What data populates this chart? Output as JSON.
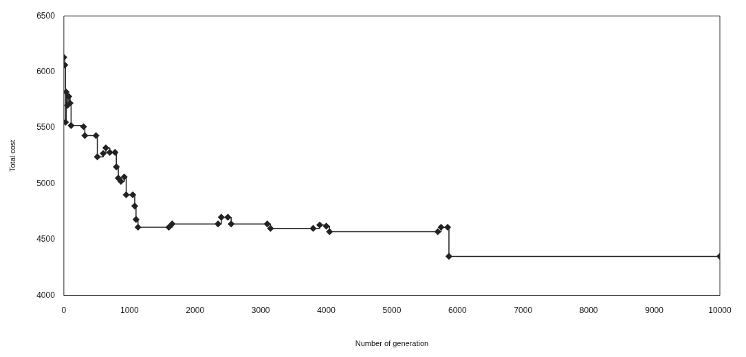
{
  "chart_data": {
    "type": "step",
    "xlabel": "Number of generation",
    "ylabel": "Total cost",
    "color": "#222222",
    "marker": "diamond",
    "grid": false,
    "legend": false,
    "x": [
      0,
      15,
      25,
      35,
      55,
      75,
      95,
      110,
      300,
      320,
      490,
      510,
      600,
      640,
      700,
      780,
      800,
      830,
      870,
      920,
      950,
      1050,
      1080,
      1100,
      1130,
      1600,
      1650,
      2350,
      2400,
      2500,
      2550,
      3100,
      3150,
      3800,
      3900,
      4000,
      4050,
      5700,
      5750,
      5850,
      5870,
      10000
    ],
    "values": [
      6130,
      6060,
      5550,
      5820,
      5700,
      5780,
      5720,
      5520,
      5510,
      5430,
      5430,
      5240,
      5270,
      5320,
      5280,
      5280,
      5150,
      5050,
      5020,
      5060,
      4900,
      4900,
      4800,
      4680,
      4610,
      4610,
      4640,
      4640,
      4700,
      4700,
      4640,
      4640,
      4600,
      4600,
      4630,
      4620,
      4570,
      4570,
      4610,
      4610,
      4350,
      4350
    ],
    "xlim": [
      0,
      10000
    ],
    "xticks": [
      0,
      1000,
      2000,
      3000,
      4000,
      5000,
      6000,
      7000,
      8000,
      9000,
      10000
    ],
    "ylim": [
      4000,
      6500
    ],
    "yticks": [
      4000,
      4500,
      5000,
      5500,
      6000,
      6500
    ]
  }
}
